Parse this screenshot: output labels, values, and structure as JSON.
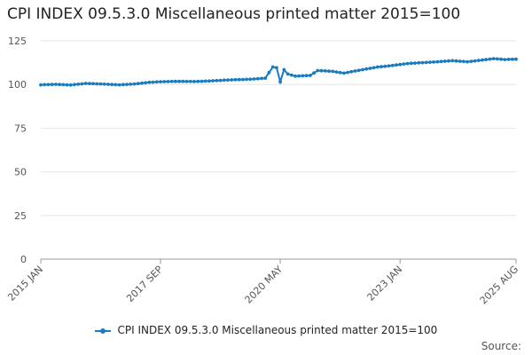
{
  "chart_title": "CPI INDEX 09.5.3.0 Miscellaneous printed matter 2015=100",
  "source_label": "Source:",
  "colors": {
    "series": "#1a7cbf",
    "grid": "#e6e6e6",
    "axis": "#999999"
  },
  "chart_data": {
    "type": "line",
    "title": "CPI INDEX 09.5.3.0 Miscellaneous printed matter 2015=100",
    "xlabel": "",
    "ylabel": "",
    "ylim": [
      0,
      125
    ],
    "yticks": [
      0,
      25,
      50,
      75,
      100,
      125
    ],
    "xlim": [
      "2015 JAN",
      "2025 AUG"
    ],
    "xticks": [
      "2015 JAN",
      "2017 SEP",
      "2020 MAY",
      "2023 JAN",
      "2025 AUG"
    ],
    "grid": true,
    "legend_position": "bottom",
    "series": [
      {
        "name": "CPI INDEX 09.5.3.0 Miscellaneous printed matter 2015=100",
        "points": [
          [
            "2015 JAN",
            99.8
          ],
          [
            "2015 MAY",
            100.1
          ],
          [
            "2015 SEP",
            99.7
          ],
          [
            "2016 JAN",
            100.6
          ],
          [
            "2016 JUN",
            100.2
          ],
          [
            "2016 OCT",
            99.8
          ],
          [
            "2017 FEB",
            100.3
          ],
          [
            "2017 JUN",
            101.2
          ],
          [
            "2017 SEP",
            101.6
          ],
          [
            "2018 JAN",
            101.8
          ],
          [
            "2018 JUN",
            101.7
          ],
          [
            "2018 OCT",
            102.0
          ],
          [
            "2019 MAR",
            102.6
          ],
          [
            "2019 SEP",
            103.0
          ],
          [
            "2020 JAN",
            103.6
          ],
          [
            "2020 MAR",
            110.0
          ],
          [
            "2020 APR",
            109.6
          ],
          [
            "2020 MAY",
            101.5
          ],
          [
            "2020 JUN",
            108.5
          ],
          [
            "2020 JUL",
            106.0
          ],
          [
            "2020 SEP",
            104.8
          ],
          [
            "2021 JAN",
            105.2
          ],
          [
            "2021 MAR",
            108.0
          ],
          [
            "2021 JUL",
            107.5
          ],
          [
            "2021 OCT",
            106.5
          ],
          [
            "2022 MAR",
            108.5
          ],
          [
            "2022 JUL",
            110.0
          ],
          [
            "2022 OCT",
            110.6
          ],
          [
            "2023 MAR",
            112.0
          ],
          [
            "2023 JUL",
            112.5
          ],
          [
            "2023 NOV",
            113.0
          ],
          [
            "2024 MAR",
            113.6
          ],
          [
            "2024 JUL",
            113.0
          ],
          [
            "2024 NOV",
            114.0
          ],
          [
            "2025 FEB",
            114.8
          ],
          [
            "2025 MAY",
            114.3
          ],
          [
            "2025 AUG",
            114.5
          ]
        ]
      }
    ]
  }
}
